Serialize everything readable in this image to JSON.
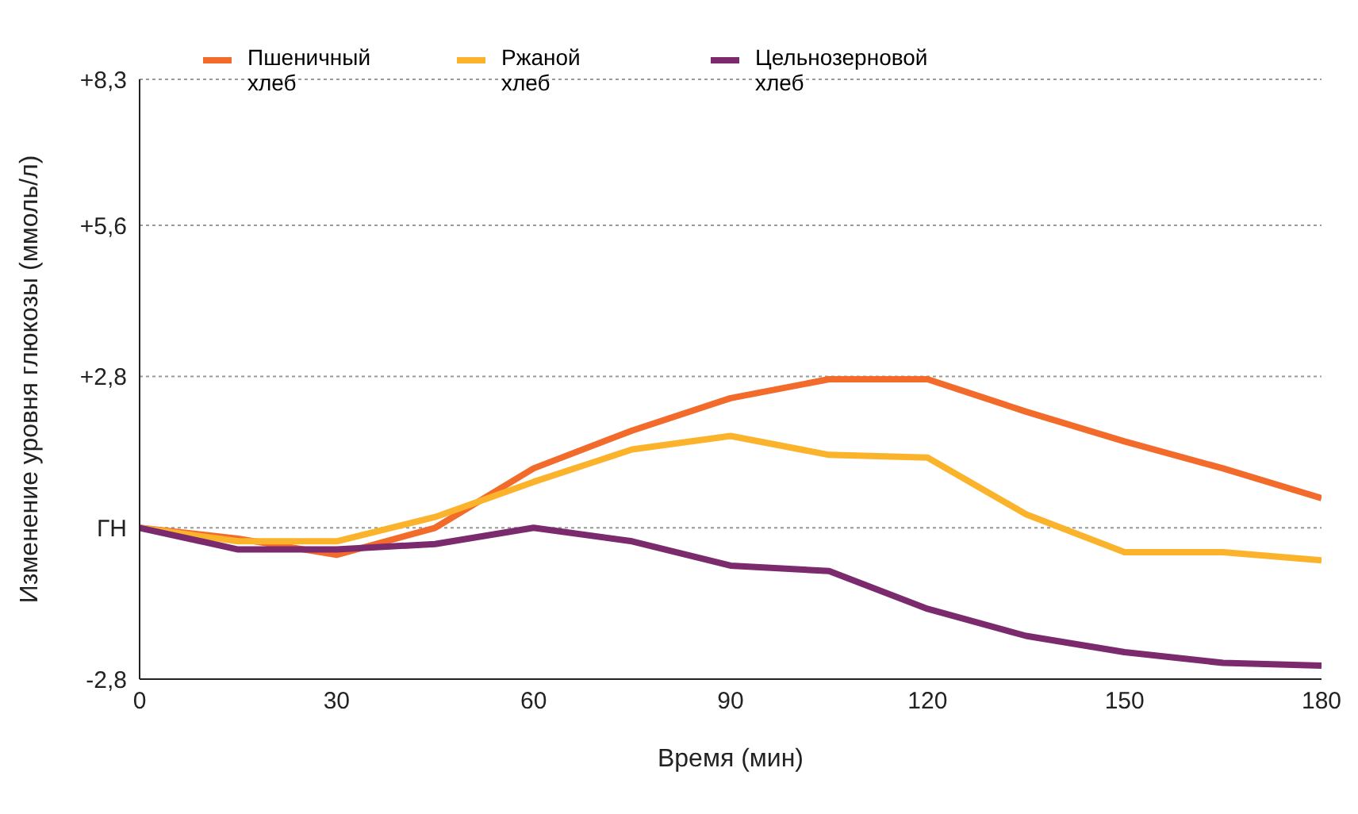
{
  "chart_data": {
    "type": "line",
    "xlabel": "Время (мин)",
    "ylabel": "Изменение уровня глюкозы (ммоль/л)",
    "x": [
      0,
      15,
      30,
      45,
      60,
      75,
      90,
      105,
      120,
      135,
      150,
      165,
      180
    ],
    "series": [
      {
        "name": "Пшеничный хлеб",
        "color": "#f26b2b",
        "values": [
          0,
          -0.2,
          -0.5,
          0,
          1.1,
          1.8,
          2.4,
          2.75,
          2.75,
          2.15,
          1.6,
          1.1,
          0.55
        ]
      },
      {
        "name": "Ржаной хлеб",
        "color": "#fbb32c",
        "values": [
          0,
          -0.25,
          -0.25,
          0.2,
          0.85,
          1.45,
          1.7,
          1.35,
          1.3,
          0.25,
          -0.45,
          -0.45,
          -0.6
        ]
      },
      {
        "name": "Цельнозерновой хлеб",
        "color": "#7b2a6e",
        "values": [
          0,
          -0.4,
          -0.4,
          -0.3,
          0,
          -0.25,
          -0.7,
          -0.8,
          -1.5,
          -2,
          -2.3,
          -2.5,
          -2.55
        ]
      }
    ],
    "xlim": [
      0,
      180
    ],
    "xticks": [
      0,
      30,
      60,
      90,
      120,
      150,
      180
    ],
    "ylim": [
      -2.8,
      8.3
    ],
    "yticks": [
      {
        "value": -2.8,
        "label": "-2,8"
      },
      {
        "value": 0,
        "label": "ГН"
      },
      {
        "value": 2.8,
        "label": "+2,8"
      },
      {
        "value": 5.6,
        "label": "+5,6"
      },
      {
        "value": 8.3,
        "label": "+8,3"
      }
    ],
    "grid": "y",
    "legend": "top left",
    "marker": "none",
    "line_style": "solid"
  }
}
